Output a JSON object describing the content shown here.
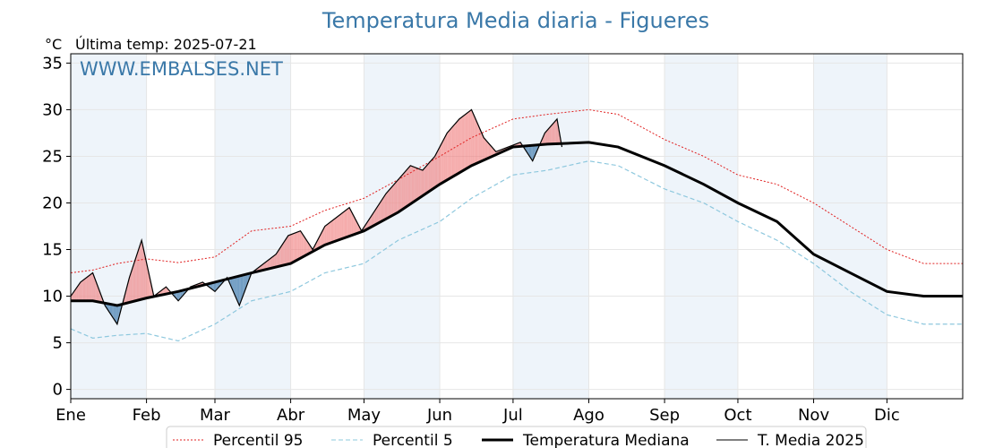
{
  "chart_data": {
    "type": "line",
    "title": "Temperatura Media diaria - Figueres",
    "unit_label": "°C",
    "last_temp_label": "Última temp: 2025-07-21",
    "watermark": "WWW.EMBALSES.NET",
    "x_tick_labels": [
      "Ene",
      "Feb",
      "Mar",
      "Abr",
      "May",
      "Jun",
      "Jul",
      "Ago",
      "Sep",
      "Oct",
      "Nov",
      "Dic"
    ],
    "y_ticks": [
      0,
      5,
      10,
      15,
      20,
      25,
      30,
      35
    ],
    "ylim": [
      -1,
      36
    ],
    "xlim": [
      1,
      366
    ],
    "grid": true,
    "legend_position": "bottom",
    "colors": {
      "title": "#3a78a8",
      "p95": "#e02020",
      "p5": "#8ec8de",
      "median": "#000000",
      "media2025": "#000000",
      "above_fill": "#f08080",
      "below_fill": "#5b8db8",
      "month_band": "#eef4fa"
    },
    "series": [
      {
        "name": "Percentil 95",
        "style": "dotted",
        "x": [
          1,
          10,
          20,
          32,
          45,
          60,
          75,
          91,
          105,
          121,
          135,
          152,
          165,
          182,
          196,
          213,
          225,
          244,
          260,
          274,
          290,
          305,
          320,
          335,
          350,
          366
        ],
        "y": [
          12.5,
          12.8,
          13.5,
          14.0,
          13.6,
          14.2,
          17.0,
          17.5,
          19.2,
          20.5,
          22.5,
          25.0,
          27.0,
          29.0,
          29.5,
          30.0,
          29.5,
          26.8,
          25.0,
          23.0,
          22.0,
          20.0,
          17.5,
          15.0,
          13.5,
          13.5
        ]
      },
      {
        "name": "Percentil 5",
        "style": "dashed",
        "x": [
          1,
          10,
          20,
          32,
          45,
          60,
          75,
          91,
          105,
          121,
          135,
          152,
          165,
          182,
          196,
          213,
          225,
          244,
          260,
          274,
          290,
          305,
          320,
          335,
          350,
          366
        ],
        "y": [
          6.5,
          5.5,
          5.8,
          6.0,
          5.2,
          7.0,
          9.5,
          10.5,
          12.5,
          13.5,
          16.0,
          18.0,
          20.5,
          23.0,
          23.5,
          24.5,
          24.0,
          21.5,
          20.0,
          18.0,
          16.0,
          13.5,
          10.5,
          8.0,
          7.0,
          7.0
        ]
      },
      {
        "name": "Temperatura Mediana",
        "style": "solid-thick",
        "x": [
          1,
          10,
          20,
          32,
          45,
          60,
          75,
          91,
          105,
          121,
          135,
          152,
          165,
          182,
          196,
          213,
          225,
          244,
          260,
          274,
          290,
          305,
          320,
          335,
          350,
          366
        ],
        "y": [
          9.5,
          9.5,
          9.0,
          9.8,
          10.5,
          11.5,
          12.5,
          13.5,
          15.5,
          17.0,
          19.0,
          22.0,
          24.0,
          26.0,
          26.3,
          26.5,
          26.0,
          24.0,
          22.0,
          20.0,
          18.0,
          14.5,
          12.5,
          10.5,
          10.0,
          10.0
        ]
      },
      {
        "name": "T. Media 2025",
        "style": "solid-thin",
        "x": [
          1,
          5,
          10,
          15,
          20,
          25,
          30,
          35,
          40,
          45,
          50,
          55,
          60,
          65,
          70,
          75,
          80,
          85,
          90,
          95,
          100,
          105,
          110,
          115,
          120,
          125,
          130,
          135,
          140,
          145,
          150,
          155,
          160,
          165,
          170,
          175,
          180,
          185,
          190,
          195,
          200,
          202
        ],
        "y": [
          10.0,
          11.5,
          12.5,
          9.0,
          7.0,
          12.0,
          16.0,
          10.0,
          11.0,
          9.5,
          11.0,
          11.5,
          10.5,
          12.0,
          9.0,
          12.5,
          13.5,
          14.5,
          16.5,
          17.0,
          15.0,
          17.5,
          18.5,
          19.5,
          17.0,
          19.0,
          21.0,
          22.5,
          24.0,
          23.5,
          25.0,
          27.5,
          29.0,
          30.0,
          27.0,
          25.5,
          26.0,
          26.5,
          24.5,
          27.5,
          29.0,
          26.0
        ]
      }
    ]
  },
  "legend": {
    "p95": "Percentil 95",
    "p5": "Percentil 5",
    "median": "Temperatura Mediana",
    "media2025": "T. Media 2025"
  }
}
